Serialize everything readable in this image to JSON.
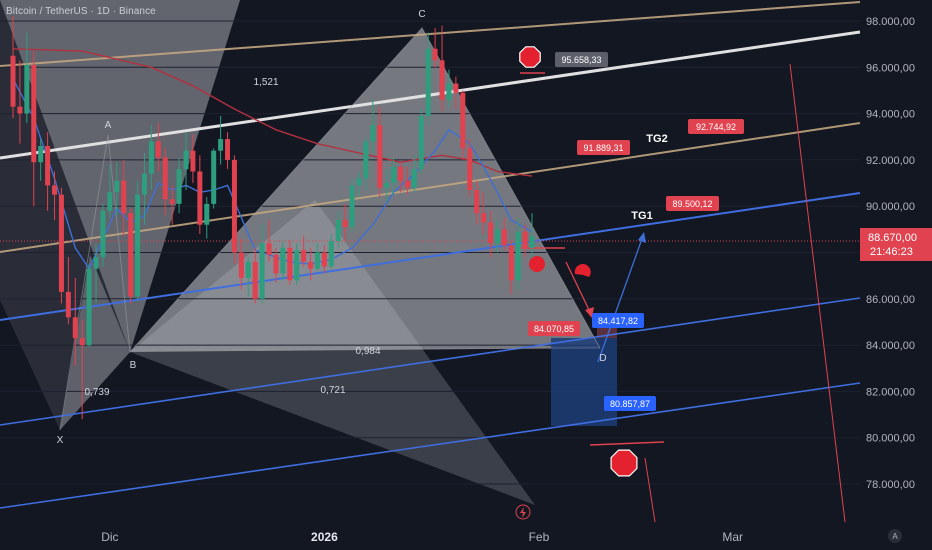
{
  "header": {
    "title": "Bitcoin / TetherUS · 1D · Binance"
  },
  "chart_data": {
    "type": "candlestick",
    "price_axis": {
      "ticks": [
        78000,
        80000,
        82000,
        84000,
        86000,
        88000,
        90000,
        92000,
        94000,
        96000,
        98000
      ],
      "labels": [
        "78.000,00",
        "80.000,00",
        "82.000,00",
        "84.000,00",
        "86.000,00",
        "88.000,00",
        "90.000,00",
        "92.000,00",
        "94.000,00",
        "96.000,00",
        "98.000,00"
      ],
      "ylim": [
        76500,
        99200
      ]
    },
    "time_axis": {
      "labels": [
        {
          "text": "Dic",
          "bold": false,
          "index": 14
        },
        {
          "text": "2026",
          "bold": true,
          "index": 45
        },
        {
          "text": "Feb",
          "bold": false,
          "index": 76
        },
        {
          "text": "Mar",
          "bold": false,
          "index": 104
        }
      ]
    },
    "last_price": {
      "value": 88670,
      "label": "88.670,00",
      "countdown": "21:46:23"
    },
    "colors": {
      "up": "#2e9e7f",
      "down": "#e0424f",
      "background": "#131722",
      "ma_red": "#b2303f",
      "ma_blue": "#3d6fd6"
    },
    "candles": [
      [
        96500,
        98200,
        93800,
        94300
      ],
      [
        94300,
        96300,
        92700,
        94000
      ],
      [
        94000,
        97500,
        93600,
        96100
      ],
      [
        96100,
        96700,
        90000,
        91900
      ],
      [
        91900,
        92900,
        91100,
        92600
      ],
      [
        92600,
        93200,
        89800,
        90900
      ],
      [
        90900,
        91500,
        89400,
        90500
      ],
      [
        90500,
        90800,
        85800,
        86300
      ],
      [
        86300,
        87800,
        84900,
        85200
      ],
      [
        85200,
        86900,
        83100,
        84300
      ],
      [
        84300,
        85100,
        80800,
        84000
      ],
      [
        84000,
        87500,
        83900,
        87300
      ],
      [
        87300,
        88400,
        85800,
        87800
      ],
      [
        87800,
        90100,
        87400,
        89800
      ],
      [
        89800,
        91800,
        89500,
        90600
      ],
      [
        90600,
        91900,
        89600,
        91100
      ],
      [
        91100,
        92000,
        88700,
        89700
      ],
      [
        89700,
        89900,
        85800,
        86100
      ],
      [
        86100,
        91100,
        85900,
        90500
      ],
      [
        90500,
        92300,
        89200,
        91400
      ],
      [
        91400,
        93500,
        90700,
        92800
      ],
      [
        92800,
        93600,
        91500,
        92100
      ],
      [
        92100,
        92500,
        89600,
        90300
      ],
      [
        90300,
        90900,
        89200,
        90100
      ],
      [
        90100,
        92100,
        89700,
        91600
      ],
      [
        91600,
        93200,
        90700,
        92400
      ],
      [
        92400,
        93100,
        91000,
        91500
      ],
      [
        91500,
        92200,
        88800,
        89200
      ],
      [
        89200,
        90400,
        88600,
        90100
      ],
      [
        90100,
        92500,
        89900,
        92400
      ],
      [
        92400,
        93900,
        91800,
        92900
      ],
      [
        92900,
        93200,
        91600,
        92000
      ],
      [
        92000,
        92200,
        87500,
        88000
      ],
      [
        88000,
        88600,
        86400,
        86900
      ],
      [
        86900,
        87800,
        86100,
        87600
      ],
      [
        87600,
        88200,
        85800,
        86000
      ],
      [
        86000,
        89200,
        85800,
        88400
      ],
      [
        88400,
        89400,
        87600,
        87900
      ],
      [
        87900,
        88200,
        86700,
        87100
      ],
      [
        87100,
        88500,
        86800,
        88200
      ],
      [
        88200,
        88500,
        86600,
        86800
      ],
      [
        86800,
        88400,
        86600,
        88100
      ],
      [
        88100,
        88700,
        87400,
        87600
      ],
      [
        87600,
        88200,
        86800,
        87300
      ],
      [
        87300,
        88400,
        87200,
        88000
      ],
      [
        88000,
        88300,
        87100,
        87400
      ],
      [
        87400,
        88800,
        87300,
        88500
      ],
      [
        88500,
        89800,
        88200,
        89400
      ],
      [
        89400,
        90100,
        88500,
        89100
      ],
      [
        89100,
        91200,
        88900,
        90900
      ],
      [
        90900,
        91500,
        90400,
        91200
      ],
      [
        91200,
        93000,
        90700,
        92800
      ],
      [
        92800,
        94600,
        92300,
        93500
      ],
      [
        93500,
        94300,
        90400,
        90800
      ],
      [
        90800,
        91600,
        90200,
        91000
      ],
      [
        91000,
        92100,
        90500,
        91700
      ],
      [
        91700,
        91900,
        90600,
        91100
      ],
      [
        91100,
        91700,
        90500,
        90800
      ],
      [
        90800,
        92200,
        90600,
        91600
      ],
      [
        91600,
        94200,
        91400,
        93900
      ],
      [
        93900,
        97500,
        93500,
        96800
      ],
      [
        96800,
        97700,
        96000,
        96300
      ],
      [
        96300,
        97800,
        94100,
        94600
      ],
      [
        94600,
        95900,
        94300,
        95300
      ],
      [
        95300,
        95600,
        94200,
        94900
      ],
      [
        94900,
        95000,
        92000,
        92500
      ],
      [
        92500,
        92900,
        90400,
        90700
      ],
      [
        90700,
        91100,
        89200,
        89700
      ],
      [
        89700,
        90600,
        88800,
        89300
      ],
      [
        89300,
        89800,
        87800,
        88400
      ],
      [
        88400,
        89400,
        88000,
        89000
      ],
      [
        89000,
        89500,
        88100,
        88300
      ],
      [
        88300,
        88500,
        86200,
        86800
      ],
      [
        86800,
        89500,
        86400,
        88900
      ],
      [
        88900,
        89200,
        87800,
        88200
      ],
      [
        88200,
        89700,
        87300,
        88700
      ]
    ],
    "ma_red": [
      [
        0,
        96800
      ],
      [
        10,
        96700
      ],
      [
        20,
        96000
      ],
      [
        26,
        95200
      ],
      [
        32,
        94200
      ],
      [
        38,
        93300
      ],
      [
        44,
        92700
      ],
      [
        50,
        92300
      ],
      [
        56,
        91900
      ],
      [
        62,
        92200
      ],
      [
        66,
        92000
      ],
      [
        70,
        91500
      ],
      [
        75,
        91300
      ]
    ],
    "ma_blue": [
      [
        0,
        95500
      ],
      [
        3,
        93800
      ],
      [
        6,
        91200
      ],
      [
        9,
        88200
      ],
      [
        11,
        87300
      ],
      [
        13,
        88600
      ],
      [
        15,
        89900
      ],
      [
        17,
        89300
      ],
      [
        19,
        89600
      ],
      [
        21,
        91000
      ],
      [
        23,
        90700
      ],
      [
        25,
        90900
      ],
      [
        27,
        90600
      ],
      [
        29,
        90700
      ],
      [
        31,
        90900
      ],
      [
        33,
        89500
      ],
      [
        35,
        88100
      ],
      [
        37,
        87900
      ],
      [
        40,
        87600
      ],
      [
        43,
        87500
      ],
      [
        46,
        87700
      ],
      [
        49,
        88200
      ],
      [
        52,
        89200
      ],
      [
        55,
        90600
      ],
      [
        58,
        91400
      ],
      [
        61,
        92400
      ],
      [
        63,
        93300
      ],
      [
        66,
        92700
      ],
      [
        68,
        91700
      ],
      [
        70,
        90600
      ],
      [
        72,
        89400
      ],
      [
        75,
        88900
      ]
    ],
    "annotations": {
      "pattern_points": [
        "X",
        "A",
        "B",
        "C",
        "D"
      ],
      "ratios": [
        "1,521",
        "0,739",
        "0,721",
        "0,984"
      ],
      "price_labels": [
        {
          "text": "95.658,33",
          "theme": "gray"
        },
        {
          "text": "92.744,92",
          "theme": "red"
        },
        {
          "text": "91.889,31",
          "theme": "red"
        },
        {
          "text": "89.500,12",
          "theme": "red"
        },
        {
          "text": "84.070,85",
          "theme": "red"
        },
        {
          "text": "84.417,82",
          "theme": "blue"
        },
        {
          "text": "80.857,87",
          "theme": "blue"
        }
      ],
      "targets": [
        "TG2",
        "TG1"
      ],
      "time_axis_badge": "A"
    }
  }
}
